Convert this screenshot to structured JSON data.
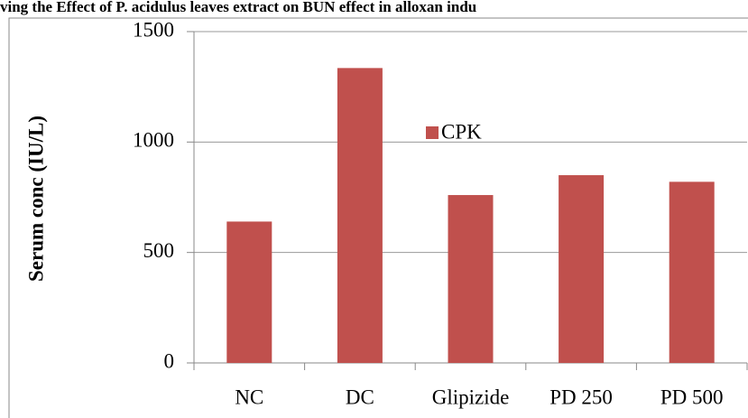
{
  "chart_data": {
    "type": "bar",
    "title": "ving the Effect of P. acidulus leaves extract on BUN effect in alloxan indu",
    "y_label": "Serum conc (IU/L)",
    "categories": [
      "NC",
      "DC",
      "Glipizide",
      "PD 250",
      "PD 500"
    ],
    "series": [
      {
        "name": "CPK",
        "color": "#c0504d",
        "values": [
          640,
          1335,
          760,
          850,
          820
        ]
      }
    ],
    "ylim": [
      0,
      1500
    ],
    "yticks": [
      0,
      500,
      1000,
      1500
    ],
    "grid": true
  }
}
